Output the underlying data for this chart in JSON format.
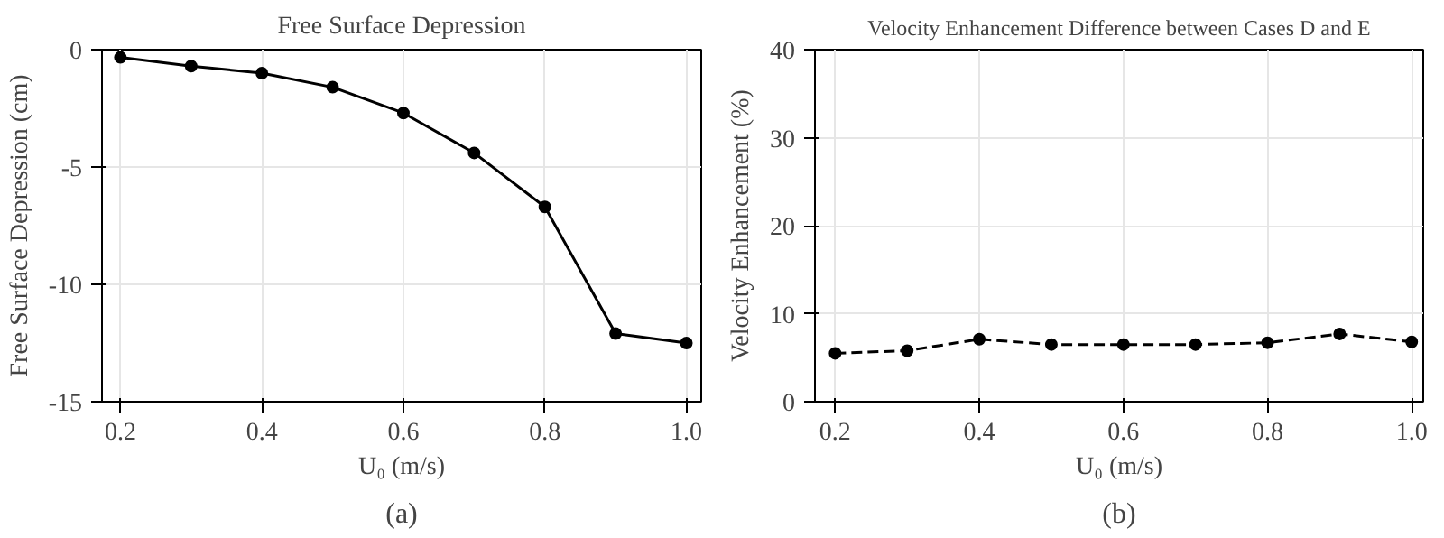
{
  "chart_data": [
    {
      "type": "line",
      "title": "Free Surface Depression",
      "xlabel": "U₀ (m/s)",
      "ylabel": "Free Surface Depression (cm)",
      "annotations": [
        "(a)"
      ],
      "x": [
        0.2,
        0.3,
        0.4,
        0.5,
        0.6,
        0.7,
        0.8,
        0.9,
        1.0
      ],
      "series": [
        {
          "color": "#000000",
          "values": [
            -0.33,
            -0.7,
            -1.0,
            -1.6,
            -2.7,
            -4.4,
            -6.7,
            -12.1,
            -12.5
          ]
        }
      ],
      "xlim": [
        0.174,
        1.021
      ],
      "ylim": [
        -15,
        0
      ],
      "xticks": [
        {
          "value": 0.2,
          "label": "0.2"
        },
        {
          "value": 0.4,
          "label": "0.4"
        },
        {
          "value": 0.6,
          "label": "0.6"
        },
        {
          "value": 0.8,
          "label": "0.8"
        },
        {
          "value": 1.0,
          "label": "1.0"
        }
      ],
      "yticks": [
        -15,
        -10,
        -5,
        0
      ],
      "grid": true,
      "marker": "circle",
      "line_style": "solid"
    },
    {
      "type": "line",
      "title": "Velocity Enhancement Difference between Cases D and E",
      "xlabel": "U₀ (m/s)",
      "ylabel": "Velocity Enhancement (%)",
      "annotations": [
        "(b)"
      ],
      "x": [
        0.2,
        0.3,
        0.4,
        0.5,
        0.6,
        0.7,
        0.8,
        0.9,
        1.0
      ],
      "series": [
        {
          "color": "#000000",
          "values": [
            5.5,
            5.8,
            7.1,
            6.5,
            6.5,
            6.5,
            6.7,
            7.7,
            6.8
          ]
        }
      ],
      "xlim": [
        0.172,
        1.016
      ],
      "ylim": [
        0,
        40
      ],
      "xticks": [
        {
          "value": 0.2,
          "label": "0.2"
        },
        {
          "value": 0.4,
          "label": "0.4"
        },
        {
          "value": 0.6,
          "label": "0.6"
        },
        {
          "value": 0.8,
          "label": "0.8"
        },
        {
          "value": 1.0,
          "label": "1.0"
        }
      ],
      "yticks": [
        0,
        10,
        20,
        30,
        40
      ],
      "grid": true,
      "marker": "circle",
      "line_style": "dashed"
    }
  ]
}
